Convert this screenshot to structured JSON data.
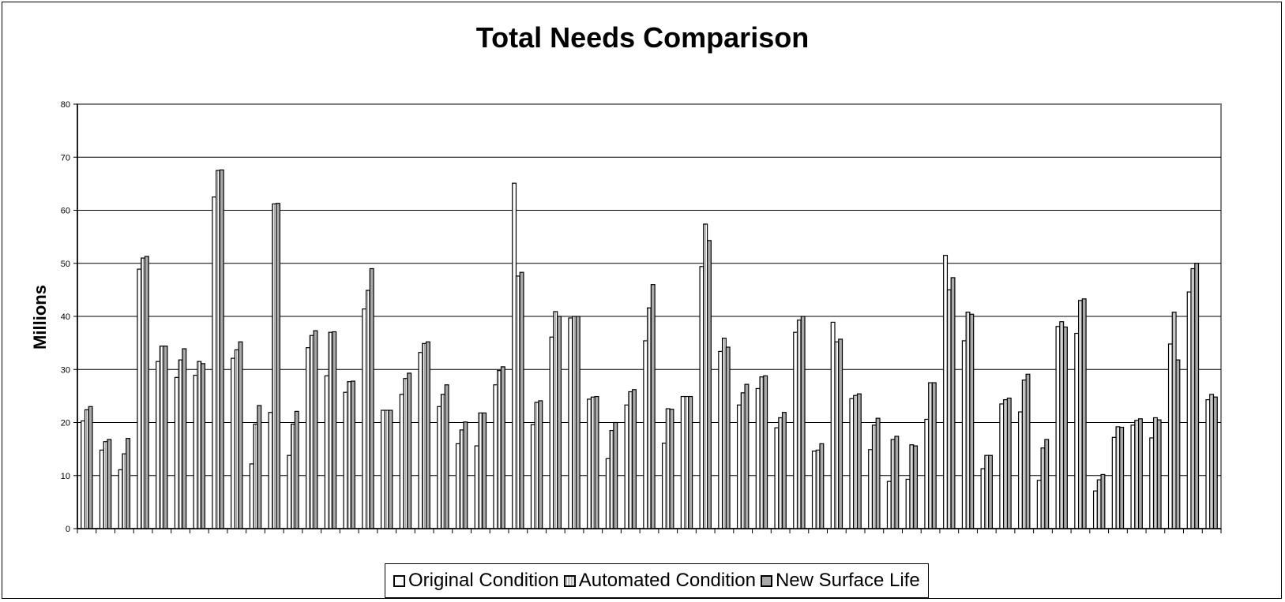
{
  "chart_data": {
    "type": "bar",
    "title": "Total Needs Comparison",
    "xlabel": "",
    "ylabel": "Millions",
    "ylim": [
      0,
      80
    ],
    "yticks": [
      0,
      10,
      20,
      30,
      40,
      50,
      60,
      70,
      80
    ],
    "grid": true,
    "legend_position": "bottom",
    "colors": {
      "original": "#ffffff",
      "automated": "#d9d9d9",
      "new_surface": "#a9a9a9",
      "plot_bg": "#ffffff",
      "axis": "#808080"
    },
    "series": [
      {
        "name": "Original Condition",
        "values": [
          20.3,
          14.8,
          11.1,
          48.9,
          31.5,
          28.5,
          28.9,
          62.5,
          32.1,
          12.2,
          21.9,
          13.8,
          34.1,
          28.8,
          25.7,
          41.4,
          22.3,
          25.3,
          33.2,
          23.0,
          16.0,
          15.6,
          27.1,
          65.1,
          19.6,
          36.1,
          39.7,
          24.4,
          13.2,
          23.3,
          35.4,
          16.1,
          24.9,
          49.4,
          33.4,
          23.3,
          26.4,
          19.0,
          37.0,
          14.6,
          38.9,
          24.5,
          14.9,
          8.9,
          9.3,
          20.6,
          51.5,
          35.4,
          11.3,
          23.5,
          22.0,
          9.1,
          38.1,
          36.8,
          7.1,
          17.2,
          19.5,
          17.1,
          34.8,
          44.6,
          24.3
        ]
      },
      {
        "name": "Automated Condition",
        "values": [
          22.4,
          16.4,
          14.1,
          51.0,
          34.4,
          31.8,
          31.5,
          67.5,
          33.7,
          19.7,
          61.2,
          19.7,
          36.4,
          37.0,
          27.7,
          44.9,
          22.3,
          28.3,
          34.9,
          25.3,
          18.6,
          21.8,
          29.8,
          47.6,
          23.8,
          40.9,
          40.0,
          24.8,
          18.5,
          25.8,
          41.6,
          22.6,
          24.9,
          57.4,
          35.9,
          25.6,
          28.6,
          20.9,
          39.3,
          14.8,
          35.2,
          25.1,
          19.5,
          16.8,
          15.8,
          27.5,
          45.0,
          40.8,
          13.8,
          24.3,
          28.0,
          15.2,
          39.0,
          43.0,
          9.2,
          19.2,
          20.4,
          20.9,
          40.8,
          49.0,
          25.3
        ]
      },
      {
        "name": "New Surface Life",
        "values": [
          23.0,
          16.8,
          17.0,
          51.3,
          34.4,
          33.9,
          31.1,
          67.6,
          35.2,
          23.2,
          61.3,
          22.1,
          37.3,
          37.1,
          27.8,
          49.0,
          22.3,
          29.3,
          35.2,
          27.1,
          20.1,
          21.8,
          30.5,
          48.3,
          24.1,
          40.0,
          40.0,
          24.9,
          20.0,
          26.2,
          46.0,
          22.5,
          24.9,
          54.3,
          34.2,
          27.2,
          28.8,
          21.9,
          40.0,
          16.0,
          35.7,
          25.4,
          20.8,
          17.4,
          15.6,
          27.5,
          47.3,
          40.4,
          13.8,
          24.6,
          29.1,
          16.8,
          38.0,
          43.3,
          10.2,
          19.1,
          20.7,
          20.5,
          31.8,
          50.0,
          24.8
        ]
      }
    ]
  }
}
